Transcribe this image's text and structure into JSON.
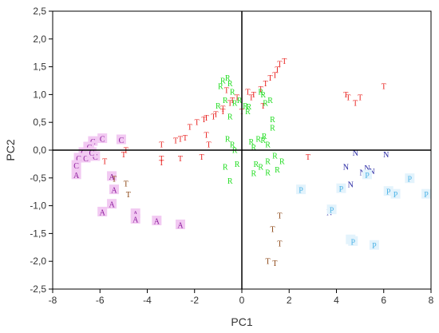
{
  "chart_data": {
    "type": "scatter",
    "title": "",
    "xlabel": "PC1",
    "ylabel": "PC2",
    "xlim": [
      -8,
      8
    ],
    "ylim": [
      -2.5,
      2.5
    ],
    "x_ticks": [
      "-8",
      "-6",
      "-4",
      "-2",
      "0",
      "2",
      "4",
      "6",
      "8"
    ],
    "y_ticks": [
      "2,5",
      "2,0",
      "1,5",
      "1,0",
      "0,5",
      "0,0",
      "-0,5",
      "-1,0",
      "-1,5",
      "-2,0",
      "-2,5"
    ],
    "x_tick_values": [
      -8,
      -6,
      -4,
      -2,
      0,
      2,
      4,
      6,
      8
    ],
    "y_tick_values": [
      2.5,
      2.0,
      1.5,
      1.0,
      0.5,
      0.0,
      -0.5,
      -1.0,
      -1.5,
      -2.0,
      -2.5
    ],
    "reference_lines": {
      "x": 0,
      "y": 0
    },
    "grid": false,
    "series": [
      {
        "marker": "C",
        "color": "#8b1a9b",
        "highlight": "#f2c9f2",
        "points": [
          [
            -6.3,
            0.15
          ],
          [
            -6.5,
            0.05
          ],
          [
            -6.7,
            -0.05
          ],
          [
            -6.4,
            -0.1
          ],
          [
            -6.6,
            -0.15
          ],
          [
            -6.9,
            -0.15
          ],
          [
            -7.0,
            -0.28
          ],
          [
            -6.2,
            -0.12
          ],
          [
            -5.9,
            0.2
          ],
          [
            -5.1,
            0.18
          ],
          [
            -6.45,
            0.05
          ],
          [
            -6.35,
            -0.05
          ]
        ]
      },
      {
        "marker": "A",
        "color": "#8b1a9b",
        "highlight": "#f2c9f2",
        "points": [
          [
            -7.0,
            -0.45
          ],
          [
            -5.5,
            -0.48
          ],
          [
            -5.4,
            -0.72
          ],
          [
            -5.5,
            -0.98
          ],
          [
            -5.9,
            -1.12
          ],
          [
            -4.5,
            -1.15
          ],
          [
            -4.5,
            -1.25
          ],
          [
            -3.6,
            -1.28
          ],
          [
            -2.6,
            -1.35
          ]
        ]
      },
      {
        "marker": "T",
        "color": "#e8201e",
        "highlight": "none",
        "points": [
          [
            -5.8,
            -0.2
          ],
          [
            -5.0,
            -0.08
          ],
          [
            -4.9,
            0.0
          ],
          [
            -3.4,
            -0.15
          ],
          [
            -3.4,
            -0.22
          ],
          [
            -2.6,
            -0.15
          ],
          [
            -1.7,
            -0.12
          ],
          [
            -3.4,
            0.1
          ],
          [
            -2.8,
            0.17
          ],
          [
            -2.6,
            0.2
          ],
          [
            -2.4,
            0.22
          ],
          [
            -1.5,
            0.27
          ],
          [
            -1.4,
            0.1
          ],
          [
            -2.2,
            0.42
          ],
          [
            -1.9,
            0.5
          ],
          [
            -1.6,
            0.55
          ],
          [
            -1.5,
            0.58
          ],
          [
            -1.2,
            0.6
          ],
          [
            -1.1,
            0.65
          ],
          [
            -0.8,
            0.7
          ],
          [
            -0.8,
            0.75
          ],
          [
            -0.5,
            0.85
          ],
          [
            -0.4,
            0.9
          ],
          [
            -0.2,
            0.95
          ],
          [
            0.0,
            0.7
          ],
          [
            0.25,
            1.05
          ],
          [
            0.4,
            0.95
          ],
          [
            0.5,
            1.0
          ],
          [
            0.8,
            1.1
          ],
          [
            1.0,
            1.2
          ],
          [
            1.2,
            1.3
          ],
          [
            1.4,
            1.35
          ],
          [
            1.5,
            1.45
          ],
          [
            1.6,
            1.55
          ],
          [
            1.8,
            1.6
          ],
          [
            -0.65,
            1.08
          ],
          [
            0.9,
            0.8
          ],
          [
            2.8,
            -0.12
          ],
          [
            4.4,
            1.0
          ],
          [
            4.5,
            0.95
          ],
          [
            4.8,
            0.85
          ],
          [
            5.0,
            0.95
          ],
          [
            6.0,
            1.15
          ]
        ]
      },
      {
        "marker": "T",
        "color": "#8b4513",
        "highlight": "none",
        "points": [
          [
            -5.4,
            -0.52
          ],
          [
            -4.9,
            -0.6
          ],
          [
            -4.8,
            -0.8
          ],
          [
            1.6,
            -1.18
          ],
          [
            1.3,
            -1.42
          ],
          [
            1.6,
            -1.68
          ],
          [
            1.1,
            -2.0
          ],
          [
            1.4,
            -2.03
          ]
        ]
      },
      {
        "marker": "R",
        "color": "#22dd22",
        "highlight": "none",
        "points": [
          [
            -0.8,
            1.25
          ],
          [
            -0.6,
            1.3
          ],
          [
            -0.5,
            1.2
          ],
          [
            -0.9,
            1.15
          ],
          [
            -0.4,
            1.05
          ],
          [
            -0.7,
            0.9
          ],
          [
            -1.0,
            0.8
          ],
          [
            -0.3,
            0.85
          ],
          [
            -0.1,
            0.9
          ],
          [
            -0.5,
            0.6
          ],
          [
            0.15,
            0.8
          ],
          [
            0.25,
            0.7
          ],
          [
            0.3,
            0.78
          ],
          [
            0.8,
            1.05
          ],
          [
            0.9,
            1.0
          ],
          [
            1.0,
            0.85
          ],
          [
            1.2,
            0.9
          ],
          [
            1.3,
            0.55
          ],
          [
            1.3,
            0.4
          ],
          [
            0.7,
            0.2
          ],
          [
            0.9,
            0.18
          ],
          [
            0.95,
            0.25
          ],
          [
            1.1,
            0.1
          ],
          [
            0.4,
            0.15
          ],
          [
            0.5,
            0.05
          ],
          [
            -0.6,
            0.2
          ],
          [
            -0.4,
            0.1
          ],
          [
            -0.3,
            0.0
          ],
          [
            -0.7,
            -0.3
          ],
          [
            -0.5,
            -0.55
          ],
          [
            -0.2,
            -0.25
          ],
          [
            0.6,
            -0.25
          ],
          [
            0.8,
            -0.3
          ],
          [
            1.1,
            -0.2
          ],
          [
            1.4,
            -0.1
          ],
          [
            1.7,
            -0.2
          ],
          [
            1.5,
            -0.35
          ],
          [
            1.1,
            -0.4
          ],
          [
            0.5,
            -0.42
          ]
        ]
      },
      {
        "marker": "N",
        "color": "#1f1fa0",
        "highlight": "none",
        "points": [
          [
            4.8,
            -0.05
          ],
          [
            6.1,
            -0.08
          ],
          [
            4.4,
            -0.3
          ],
          [
            5.3,
            -0.32
          ],
          [
            5.5,
            -0.38
          ],
          [
            5.1,
            -0.4
          ],
          [
            4.6,
            -0.62
          ],
          [
            3.8,
            -1.05
          ],
          [
            3.7,
            -1.12
          ]
        ]
      },
      {
        "marker": "P",
        "color": "#4db3e6",
        "highlight": "#e3f3fc",
        "points": [
          [
            2.5,
            -0.72
          ],
          [
            4.2,
            -0.7
          ],
          [
            5.3,
            -0.45
          ],
          [
            6.5,
            -0.8
          ],
          [
            7.1,
            -0.52
          ],
          [
            7.8,
            -0.8
          ],
          [
            6.2,
            -0.75
          ],
          [
            3.8,
            -1.08
          ],
          [
            4.6,
            -1.62
          ],
          [
            4.7,
            -1.65
          ],
          [
            5.6,
            -1.72
          ]
        ]
      }
    ]
  }
}
